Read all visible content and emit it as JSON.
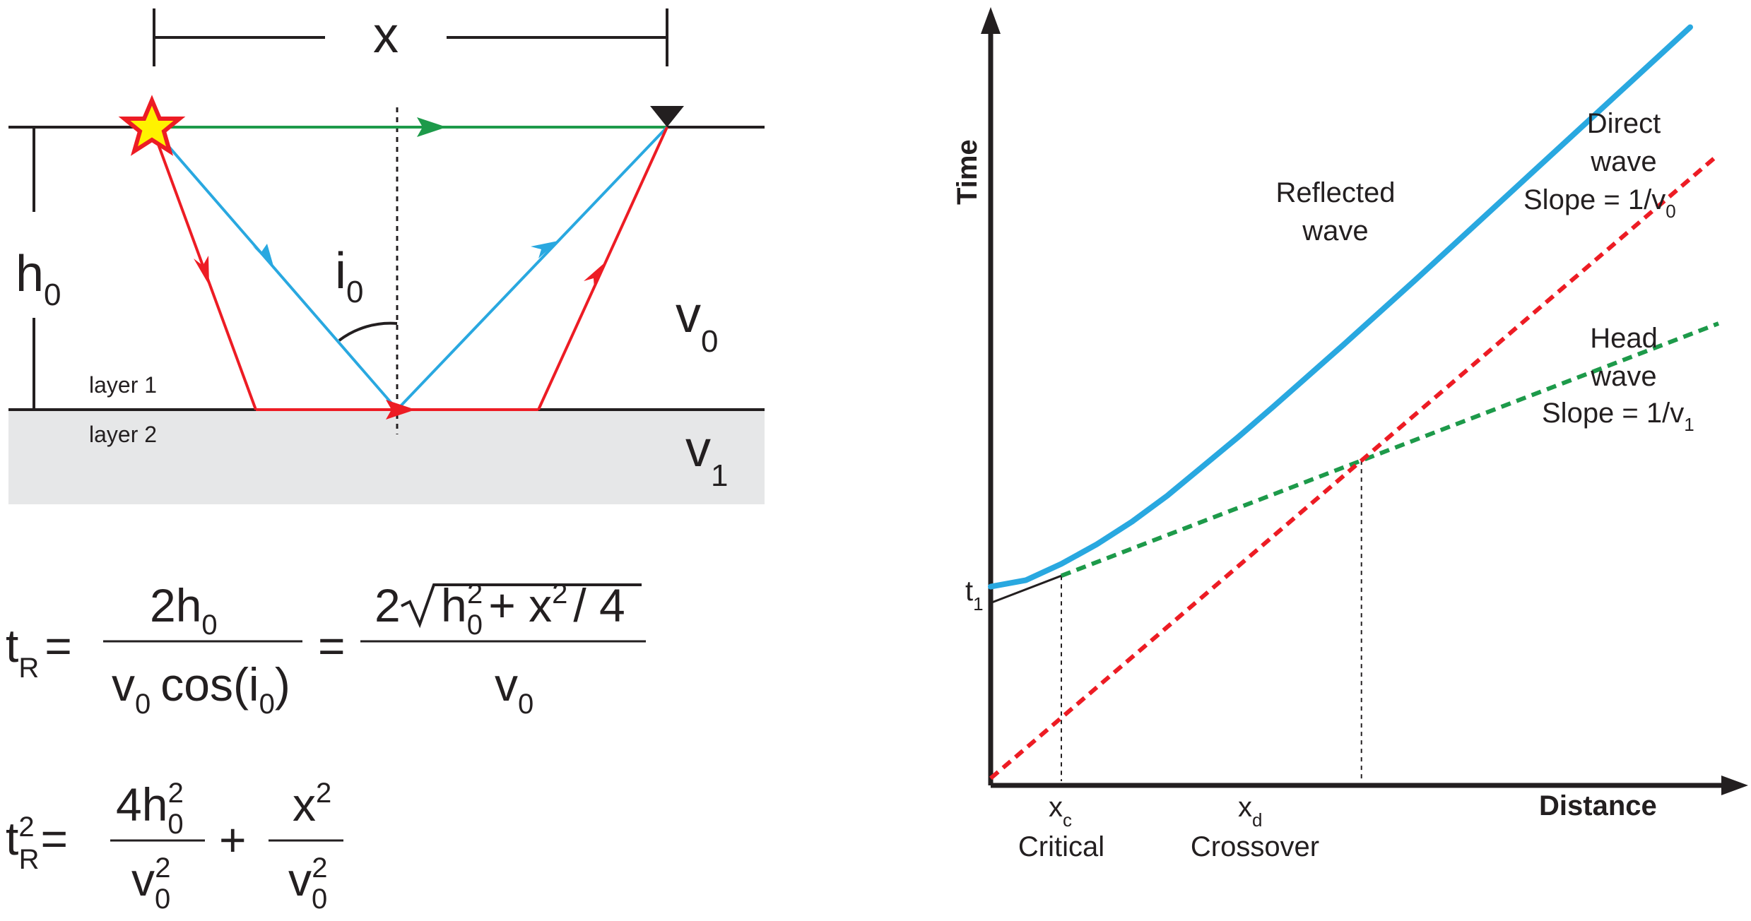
{
  "geometry_diagram": {
    "offset_label": "x",
    "thickness_label": {
      "base": "h",
      "sub": "0"
    },
    "angle_label": {
      "base": "i",
      "sub": "0"
    },
    "velocity_top": {
      "base": "v",
      "sub": "0"
    },
    "velocity_bottom": {
      "base": "v",
      "sub": "1"
    },
    "layer1_label": "layer 1",
    "layer2_label": "layer 2",
    "colors": {
      "direct": "#1d9a4a",
      "reflected": "#29a8e0",
      "head": "#ed1c24",
      "source_fill": "#fff200",
      "layer2_fill": "#e6e7e8"
    }
  },
  "equations": {
    "eq1": {
      "lhs_base": "t",
      "lhs_sub": "R",
      "eq": "=",
      "frac1_num_base": "2h",
      "frac1_num_sub": "0",
      "frac1_den_v": "v",
      "frac1_den_v_sub": "0",
      "frac1_den_cos": "cos(i",
      "frac1_den_cos_sub": "0",
      "frac1_den_close": ")",
      "frac2_num_coef": "2",
      "frac2_num_h": "h",
      "frac2_num_h_sub": "0",
      "frac2_num_h_sup": "2",
      "frac2_num_plus": "+ x",
      "frac2_num_x_sup": "2",
      "frac2_num_tail": "/ 4",
      "frac2_den_base": "v",
      "frac2_den_sub": "0"
    },
    "eq2": {
      "lhs_base": "t",
      "lhs_sub": "R",
      "lhs_sup": "2",
      "eq": "=",
      "frac1_num_base": "4h",
      "frac1_num_sub": "0",
      "frac1_num_sup": "2",
      "frac1_den_base": "v",
      "frac1_den_sub": "0",
      "frac1_den_sup": "2",
      "plus": "+",
      "frac2_num_base": "x",
      "frac2_num_sup": "2",
      "frac2_den_base": "v",
      "frac2_den_sub": "0",
      "frac2_den_sup": "2"
    }
  },
  "chart_data": {
    "type": "line",
    "xlabel": "Distance",
    "ylabel": "Time",
    "intercept_label": {
      "base": "t",
      "sub": "1"
    },
    "critical_label": {
      "base": "x",
      "sub": "c",
      "word": "Critical"
    },
    "crossover_label": {
      "base": "x",
      "sub": "d",
      "word": "Crossover"
    },
    "series": [
      {
        "name": "Direct wave",
        "label_lines": [
          "Direct",
          "wave"
        ],
        "slope_text": "Slope = 1/v",
        "slope_sub": "0",
        "color": "#ed1c24",
        "style": "dashed",
        "x": [
          0,
          10.3
        ],
        "y": [
          0,
          9.6
        ]
      },
      {
        "name": "Head wave",
        "label_lines": [
          "Head",
          "wave"
        ],
        "slope_text": "Slope = 1/v",
        "slope_sub": "1",
        "color": "#1d9a4a",
        "style": "dashed",
        "x": [
          0,
          10.3
        ],
        "y": [
          2.7,
          7.0
        ]
      },
      {
        "name": "Reflected wave",
        "label_lines": [
          "Reflected",
          "wave"
        ],
        "color": "#29a8e0",
        "style": "solid",
        "x": [
          0,
          0.5,
          1,
          1.5,
          2,
          2.5,
          3,
          3.5,
          4,
          4.5,
          5,
          5.5,
          6,
          6.5,
          7,
          7.5,
          8,
          8.5,
          9,
          9.5,
          9.9
        ],
        "y": [
          2.95,
          3.05,
          3.3,
          3.6,
          3.95,
          4.35,
          4.8,
          5.25,
          5.72,
          6.2,
          6.68,
          7.17,
          7.66,
          8.16,
          8.66,
          9.16,
          9.66,
          10.16,
          10.66,
          11.16,
          11.56
        ]
      }
    ],
    "xlim": [
      0,
      11
    ],
    "ylim": [
      0,
      12
    ],
    "grid": false
  }
}
